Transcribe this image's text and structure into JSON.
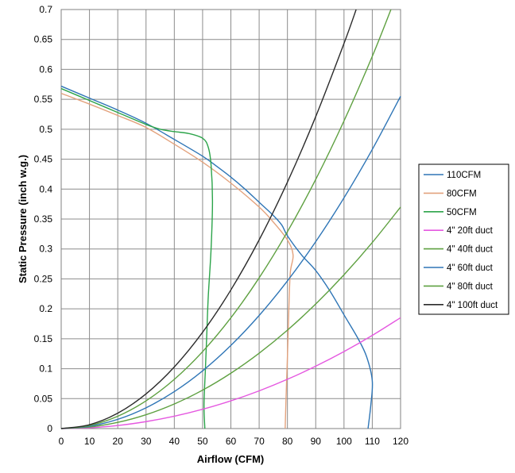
{
  "chart_data": {
    "type": "line",
    "xlabel": "Airflow (CFM)",
    "ylabel": "Static Pressure (inch w.g.)",
    "xlim": [
      0,
      120
    ],
    "ylim": [
      0,
      0.7
    ],
    "grid": true,
    "legend_position": "right",
    "x_ticks": [
      "0",
      "10",
      "20",
      "30",
      "40",
      "50",
      "60",
      "70",
      "80",
      "90",
      "100",
      "110",
      "120"
    ],
    "y_ticks": [
      "0",
      "0.05",
      "0.1",
      "0.15",
      "0.2",
      "0.25",
      "0.3",
      "0.35",
      "0.4",
      "0.45",
      "0.5",
      "0.55",
      "0.6",
      "0.65",
      "0.7"
    ],
    "series": [
      {
        "name": "110CFM",
        "color": "#2e75b6",
        "x": [
          0,
          10,
          20,
          30,
          40,
          50,
          55,
          60,
          65,
          70,
          75,
          78,
          80,
          85,
          90,
          95,
          100,
          105,
          108,
          110,
          109.5,
          108.5
        ],
        "y": [
          0.572,
          0.552,
          0.532,
          0.51,
          0.483,
          0.455,
          0.438,
          0.42,
          0.4,
          0.378,
          0.356,
          0.34,
          0.322,
          0.29,
          0.264,
          0.23,
          0.19,
          0.15,
          0.12,
          0.08,
          0.04,
          0
        ]
      },
      {
        "name": "80CFM",
        "color": "#e3a27d",
        "x": [
          0,
          10,
          20,
          30,
          40,
          50,
          60,
          70,
          75,
          80,
          82,
          81,
          80.5,
          80,
          79.5,
          79.2
        ],
        "y": [
          0.56,
          0.542,
          0.523,
          0.503,
          0.475,
          0.445,
          0.41,
          0.37,
          0.345,
          0.315,
          0.29,
          0.26,
          0.2,
          0.12,
          0.05,
          0
        ]
      },
      {
        "name": "50CFM",
        "color": "#2ca44a",
        "x": [
          0,
          10,
          20,
          30,
          35,
          40,
          45,
          50,
          52,
          53,
          53.5,
          53,
          52,
          51.5,
          51,
          50.5,
          50.8
        ],
        "y": [
          0.568,
          0.548,
          0.528,
          0.508,
          0.5,
          0.496,
          0.493,
          0.485,
          0.47,
          0.44,
          0.38,
          0.3,
          0.22,
          0.16,
          0.1,
          0.04,
          0
        ]
      },
      {
        "name": "4\" 20ft duct",
        "color": "#e558e0",
        "x": [
          0,
          10,
          20,
          30,
          40,
          50,
          60,
          70,
          80,
          90,
          100,
          110,
          120
        ],
        "y": [
          0,
          0.0013,
          0.0051,
          0.0116,
          0.0206,
          0.0322,
          0.0463,
          0.063,
          0.0823,
          0.1042,
          0.1286,
          0.1556,
          0.1852
        ]
      },
      {
        "name": "4\" 40ft duct",
        "color": "#5ea040",
        "x": [
          0,
          10,
          20,
          30,
          40,
          50,
          60,
          70,
          80,
          90,
          100,
          110,
          120
        ],
        "y": [
          0,
          0.0026,
          0.0103,
          0.0231,
          0.0411,
          0.0642,
          0.0925,
          0.1259,
          0.1644,
          0.2081,
          0.2569,
          0.3108,
          0.37
        ]
      },
      {
        "name": "4\" 60ft duct",
        "color": "#2e75b6",
        "x": [
          0,
          10,
          20,
          30,
          40,
          50,
          60,
          70,
          80,
          90,
          100,
          110,
          120
        ],
        "y": [
          0,
          0.0039,
          0.0154,
          0.0347,
          0.0617,
          0.0964,
          0.1388,
          0.1889,
          0.2467,
          0.3122,
          0.3854,
          0.4663,
          0.555
        ]
      },
      {
        "name": "4\" 80ft duct",
        "color": "#5ea040",
        "x": [
          0,
          10,
          20,
          30,
          40,
          50,
          60,
          70,
          80,
          90,
          100,
          110,
          116.6
        ],
        "y": [
          0,
          0.0051,
          0.0206,
          0.0463,
          0.0822,
          0.1285,
          0.185,
          0.2518,
          0.3289,
          0.4162,
          0.5139,
          0.6218,
          0.7
        ]
      },
      {
        "name": "4\" 100ft duct",
        "color": "#2b2b2b",
        "x": [
          0,
          10,
          20,
          30,
          40,
          50,
          60,
          70,
          80,
          90,
          100,
          104.3
        ],
        "y": [
          0,
          0.0064,
          0.0257,
          0.0579,
          0.1029,
          0.1608,
          0.2316,
          0.3152,
          0.4117,
          0.5211,
          0.6433,
          0.7
        ]
      }
    ]
  }
}
